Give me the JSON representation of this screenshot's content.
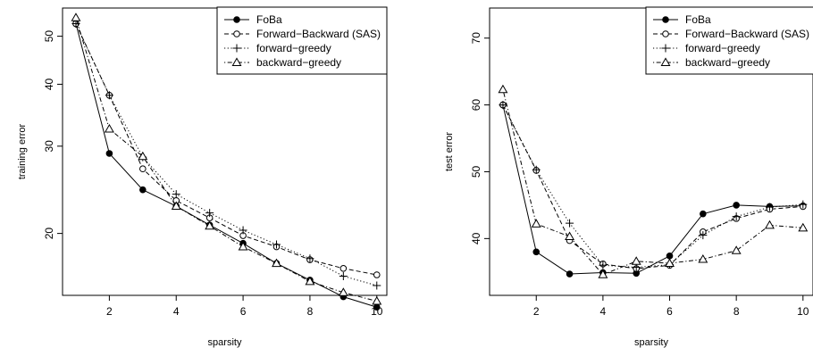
{
  "chart_data": [
    {
      "type": "line",
      "title": "",
      "xlabel": "sparsity",
      "ylabel": "training error",
      "x": [
        1,
        2,
        3,
        4,
        5,
        6,
        7,
        8,
        9,
        10
      ],
      "xlim": [
        0.6,
        10.3
      ],
      "ylim": [
        15.0,
        57.0
      ],
      "y_scale": "log",
      "x_ticks": [
        2,
        4,
        6,
        8,
        10
      ],
      "x_tick_labels": [
        "2",
        "4",
        "6",
        "8",
        "10"
      ],
      "y_ticks": [
        20,
        30,
        40,
        50
      ],
      "y_tick_labels": [
        "20",
        "30",
        "40",
        "50"
      ],
      "legend_position": "top-right",
      "grid": false,
      "series": [
        {
          "name": "FoBa",
          "style": "solid",
          "marker": "filled-circle",
          "values": [
            53.0,
            29.0,
            24.5,
            22.7,
            20.8,
            19.1,
            17.4,
            16.1,
            14.9,
            14.2
          ]
        },
        {
          "name": "Forward−Backward (SAS)",
          "style": "dashed",
          "marker": "open-circle",
          "values": [
            53.0,
            38.0,
            27.0,
            23.3,
            21.5,
            19.8,
            18.8,
            17.7,
            17.0,
            16.5
          ]
        },
        {
          "name": "forward−greedy",
          "style": "dotted",
          "marker": "plus",
          "values": [
            53.0,
            38.0,
            28.5,
            24.0,
            22.0,
            20.3,
            19.0,
            17.8,
            16.4,
            15.7
          ]
        },
        {
          "name": "backward−greedy",
          "style": "dotdash",
          "marker": "open-triangle",
          "values": [
            54.5,
            32.5,
            28.6,
            22.7,
            20.7,
            18.8,
            17.4,
            16.0,
            15.2,
            14.6
          ]
        }
      ]
    },
    {
      "type": "line",
      "title": "",
      "xlabel": "sparsity",
      "ylabel": "test error",
      "x": [
        1,
        2,
        3,
        4,
        5,
        6,
        7,
        8,
        9,
        10
      ],
      "xlim": [
        0.6,
        10.3
      ],
      "ylim": [
        31.5,
        74.5
      ],
      "y_scale": "linear",
      "x_ticks": [
        2,
        4,
        6,
        8,
        10
      ],
      "x_tick_labels": [
        "2",
        "4",
        "6",
        "8",
        "10"
      ],
      "y_ticks": [
        40,
        50,
        60,
        70
      ],
      "y_tick_labels": [
        "40",
        "50",
        "60",
        "70"
      ],
      "legend_position": "top-right",
      "grid": false,
      "series": [
        {
          "name": "FoBa",
          "style": "solid",
          "marker": "filled-circle",
          "values": [
            60.0,
            38.0,
            34.7,
            34.9,
            34.8,
            37.4,
            43.7,
            45.0,
            44.8,
            44.9
          ]
        },
        {
          "name": "Forward−Backward (SAS)",
          "style": "dashed",
          "marker": "open-circle",
          "values": [
            60.0,
            50.2,
            39.7,
            36.2,
            35.5,
            36.0,
            41.0,
            43.0,
            44.4,
            44.8
          ]
        },
        {
          "name": "forward−greedy",
          "style": "dotted",
          "marker": "plus",
          "values": [
            60.0,
            50.3,
            42.3,
            36.0,
            35.7,
            36.1,
            40.5,
            43.3,
            44.7,
            45.1
          ]
        },
        {
          "name": "backward−greedy",
          "style": "dotdash",
          "marker": "open-triangle",
          "values": [
            62.3,
            42.2,
            40.3,
            34.6,
            36.6,
            36.3,
            36.9,
            38.2,
            42.0,
            41.6
          ]
        }
      ]
    }
  ]
}
